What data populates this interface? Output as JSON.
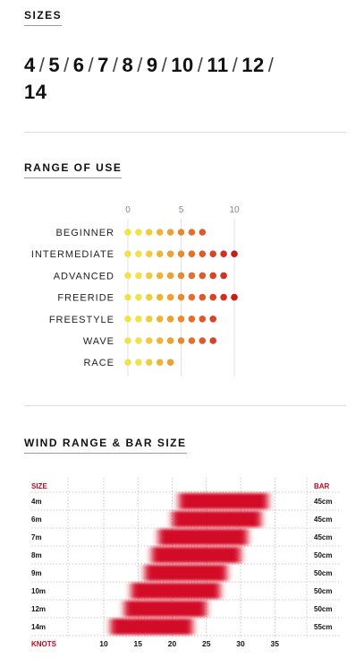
{
  "sizes": {
    "title": "SIZES",
    "list": [
      "4",
      "5",
      "6",
      "7",
      "8",
      "9",
      "10",
      "11",
      "12",
      "14"
    ],
    "separator": "/"
  },
  "range": {
    "title": "RANGE OF USE",
    "axis": [
      "0",
      "5",
      "10"
    ],
    "rows": [
      {
        "label": "BEGINNER",
        "dots": 8
      },
      {
        "label": "INTERMEDIATE",
        "dots": 11
      },
      {
        "label": "ADVANCED",
        "dots": 10
      },
      {
        "label": "FREERIDE",
        "dots": 11
      },
      {
        "label": "FREESTYLE",
        "dots": 9
      },
      {
        "label": "WAVE",
        "dots": 9
      },
      {
        "label": "RACE",
        "dots": 5
      }
    ],
    "dot_colors": [
      "#f2e24a",
      "#f2e24a",
      "#f1cc3e",
      "#efb437",
      "#eea033",
      "#e98a2f",
      "#e4702c",
      "#df5a28",
      "#d94425",
      "#d23020",
      "#c81d1a"
    ]
  },
  "wind": {
    "title": "WIND RANGE & BAR SIZE",
    "size_header": "SIZE",
    "bar_header": "BAR",
    "knots_label": "KNOTS",
    "knots_ticks": [
      "10",
      "15",
      "20",
      "25",
      "30",
      "35"
    ],
    "accent": "#d0021b",
    "rows": [
      {
        "size": "4m",
        "bar": "45cm",
        "from": 21,
        "to": 34
      },
      {
        "size": "6m",
        "bar": "45cm",
        "from": 20,
        "to": 33
      },
      {
        "size": "7m",
        "bar": "45cm",
        "from": 18,
        "to": 31
      },
      {
        "size": "8m",
        "bar": "50cm",
        "from": 17,
        "to": 30
      },
      {
        "size": "9m",
        "bar": "50cm",
        "from": 16,
        "to": 28
      },
      {
        "size": "10m",
        "bar": "50cm",
        "from": 14,
        "to": 27
      },
      {
        "size": "12m",
        "bar": "50cm",
        "from": 13,
        "to": 25
      },
      {
        "size": "14m",
        "bar": "55cm",
        "from": 11,
        "to": 23
      }
    ]
  }
}
